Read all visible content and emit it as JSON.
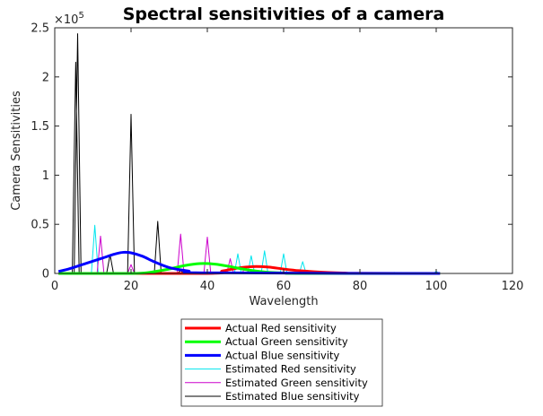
{
  "chart_data": {
    "type": "line",
    "title": "Spectral sensitivities of a camera",
    "xlabel": "Wavelength",
    "ylabel": "Camera Sensitivities",
    "xlim": [
      0,
      120
    ],
    "ylim": [
      0,
      250000
    ],
    "y_exponent_label": "×10",
    "y_exponent_power": "5",
    "x_ticks": [
      0,
      20,
      40,
      60,
      80,
      100,
      120
    ],
    "x_tick_labels": [
      "0",
      "20",
      "40",
      "60",
      "80",
      "100",
      "120"
    ],
    "y_ticks": [
      0,
      50000,
      100000,
      150000,
      200000,
      250000
    ],
    "y_tick_labels": [
      "0",
      "0.5",
      "1",
      "1.5",
      "2",
      "2.5"
    ],
    "grid": false,
    "legend_position": "below-plot",
    "series": [
      {
        "name": "Actual Red sensitivity",
        "color": "#ff0000",
        "width": 3,
        "style": "smooth",
        "x": [
          1,
          40,
          44,
          48,
          52,
          56,
          60,
          64,
          68,
          72,
          76,
          80,
          101
        ],
        "y": [
          0,
          0,
          2500,
          5500,
          7000,
          6500,
          4500,
          2800,
          1700,
          900,
          400,
          100,
          0
        ]
      },
      {
        "name": "Actual Green sensitivity",
        "color": "#00ff00",
        "width": 3,
        "style": "smooth",
        "x": [
          1,
          20,
          25,
          30,
          34,
          38,
          42,
          46,
          50,
          55,
          60,
          65,
          101
        ],
        "y": [
          0,
          0,
          1200,
          4500,
          8000,
          10000,
          9500,
          7000,
          4000,
          1500,
          400,
          0,
          0
        ]
      },
      {
        "name": "Actual Blue sensitivity",
        "color": "#0000ff",
        "width": 3,
        "style": "smooth",
        "x": [
          1,
          4,
          8,
          12,
          16,
          18,
          20,
          23,
          26,
          30,
          35,
          40,
          101
        ],
        "y": [
          2000,
          5000,
          10000,
          15000,
          20000,
          21500,
          21000,
          17500,
          12000,
          6000,
          2500,
          600,
          0
        ]
      },
      {
        "name": "Estimated Red sensitivity",
        "color": "#00e5ee",
        "width": 1,
        "style": "spikes",
        "x": [
          1,
          9,
          10.5,
          12,
          101
        ],
        "y": [
          0,
          0,
          49000,
          0,
          0
        ],
        "peaks": [
          [
            10.5,
            49000
          ],
          [
            48,
            20000
          ],
          [
            51.5,
            18000
          ],
          [
            55,
            23000
          ],
          [
            60,
            20000
          ],
          [
            65,
            12000
          ],
          [
            89,
            1000
          ],
          [
            100,
            2000
          ]
        ]
      },
      {
        "name": "Estimated Green sensitivity",
        "color": "#cc00cc",
        "width": 1,
        "style": "spikes",
        "peaks": [
          [
            12,
            38000
          ],
          [
            20,
            9000
          ],
          [
            33,
            40000
          ],
          [
            40,
            37000
          ],
          [
            46,
            15000
          ],
          [
            50,
            7000
          ]
        ]
      },
      {
        "name": "Estimated Blue sensitivity",
        "color": "#000000",
        "width": 1,
        "style": "spikes",
        "peaks": [
          [
            5.5,
            215000
          ],
          [
            6,
            244000
          ],
          [
            14.5,
            19000
          ],
          [
            20,
            162000
          ],
          [
            27,
            53000
          ],
          [
            33,
            3000
          ]
        ]
      }
    ]
  }
}
